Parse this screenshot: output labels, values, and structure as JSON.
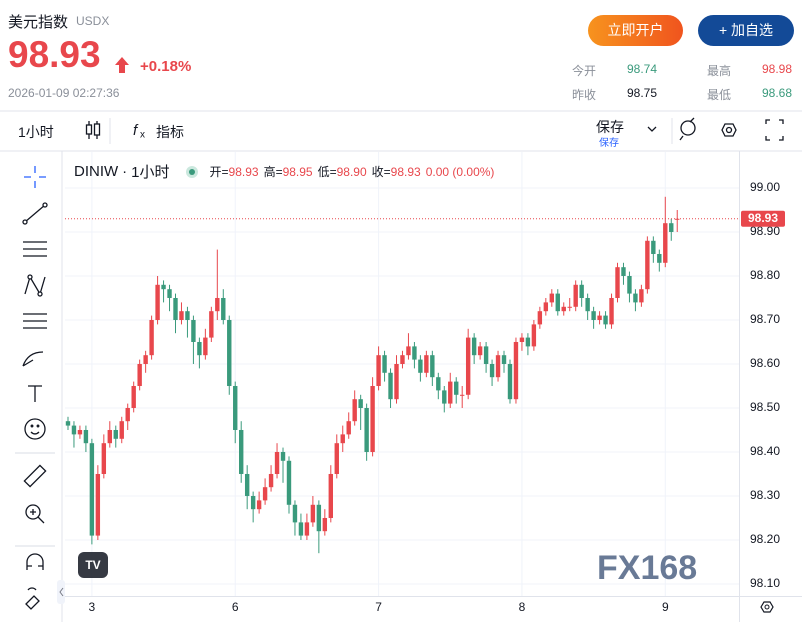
{
  "header": {
    "title": "美元指数",
    "code": "USDX",
    "price": "98.93",
    "change": "+0.18%",
    "time": "2026-01-09 02:27:36",
    "buttons": [
      "立即开户",
      "+ 加自选"
    ],
    "stats": [
      {
        "label": "今开",
        "value": "98.74"
      },
      {
        "label": "最高",
        "value": "98.98"
      },
      {
        "label": "昨收",
        "value": "98.75"
      },
      {
        "label": "最低",
        "value": "98.68"
      }
    ]
  },
  "toolbar": {
    "interval": "1小时",
    "indicators": "指标",
    "save": "保存",
    "save_sub": "保存"
  },
  "legend": {
    "symbol": "DINIW",
    "interval": "1小时",
    "items": [
      {
        "label": "开=",
        "value": "98.93"
      },
      {
        "label": "高=",
        "value": "98.95"
      },
      {
        "label": "低=",
        "value": "98.90"
      },
      {
        "label": "收=",
        "value": "98.93"
      }
    ],
    "change": "0.00 (0.00%)"
  },
  "watermark": "FX168",
  "chart_data": {
    "type": "candlestick",
    "up_color": "#e8474c",
    "down_color": "#3a9a7c",
    "categories": [
      null,
      null,
      null,
      null,
      "3",
      null,
      null,
      null,
      null,
      null,
      null,
      null,
      null,
      null,
      null,
      null,
      null,
      null,
      null,
      null,
      null,
      null,
      null,
      null,
      null,
      null,
      null,
      null,
      "6",
      null,
      null,
      null,
      null,
      null,
      null,
      null,
      null,
      null,
      null,
      null,
      null,
      null,
      null,
      null,
      null,
      null,
      null,
      null,
      null,
      null,
      null,
      null,
      "7",
      null,
      null,
      null,
      null,
      null,
      null,
      null,
      null,
      null,
      null,
      null,
      null,
      null,
      null,
      null,
      null,
      null,
      null,
      null,
      null,
      null,
      null,
      null,
      "8",
      null,
      null,
      null,
      null,
      null,
      null,
      null,
      null,
      null,
      null,
      null,
      null,
      null,
      null,
      null,
      null,
      null,
      null,
      null,
      null,
      null,
      null,
      null,
      "9",
      null,
      null
    ],
    "ohlc": [
      [
        98.47,
        98.48,
        98.45,
        98.46
      ],
      [
        98.46,
        98.47,
        98.41,
        98.44
      ],
      [
        98.44,
        98.46,
        98.43,
        98.45
      ],
      [
        98.45,
        98.46,
        98.4,
        98.42
      ],
      [
        98.42,
        98.43,
        98.19,
        98.21
      ],
      [
        98.21,
        98.37,
        98.2,
        98.35
      ],
      [
        98.35,
        98.44,
        98.34,
        98.42
      ],
      [
        98.42,
        98.47,
        98.41,
        98.45
      ],
      [
        98.45,
        98.46,
        98.41,
        98.43
      ],
      [
        98.43,
        98.48,
        98.42,
        98.47
      ],
      [
        98.47,
        98.51,
        98.45,
        98.5
      ],
      [
        98.5,
        98.56,
        98.49,
        98.55
      ],
      [
        98.55,
        98.61,
        98.54,
        98.6
      ],
      [
        98.6,
        98.63,
        98.58,
        98.62
      ],
      [
        98.62,
        98.71,
        98.61,
        98.7
      ],
      [
        98.7,
        98.8,
        98.69,
        98.78
      ],
      [
        98.78,
        98.79,
        98.74,
        98.77
      ],
      [
        98.77,
        98.78,
        98.72,
        98.75
      ],
      [
        98.75,
        98.76,
        98.67,
        98.7
      ],
      [
        98.7,
        98.74,
        98.69,
        98.72
      ],
      [
        98.72,
        98.73,
        98.66,
        98.7
      ],
      [
        98.7,
        98.71,
        98.6,
        98.65
      ],
      [
        98.65,
        98.66,
        98.59,
        98.62
      ],
      [
        98.62,
        98.68,
        98.61,
        98.66
      ],
      [
        98.66,
        98.73,
        98.65,
        98.72
      ],
      [
        98.72,
        98.86,
        98.7,
        98.75
      ],
      [
        98.75,
        98.77,
        98.69,
        98.7
      ],
      [
        98.7,
        98.71,
        98.53,
        98.55
      ],
      [
        98.55,
        98.56,
        98.42,
        98.45
      ],
      [
        98.45,
        98.47,
        98.33,
        98.35
      ],
      [
        98.35,
        98.37,
        98.27,
        98.3
      ],
      [
        98.3,
        98.31,
        98.24,
        98.27
      ],
      [
        98.27,
        98.31,
        98.26,
        98.29
      ],
      [
        98.29,
        98.34,
        98.28,
        98.32
      ],
      [
        98.32,
        98.37,
        98.31,
        98.35
      ],
      [
        98.35,
        98.42,
        98.34,
        98.4
      ],
      [
        98.4,
        98.41,
        98.33,
        98.38
      ],
      [
        98.38,
        98.39,
        98.26,
        98.28
      ],
      [
        98.28,
        98.29,
        98.21,
        98.24
      ],
      [
        98.24,
        98.26,
        98.2,
        98.21
      ],
      [
        98.21,
        98.26,
        98.2,
        98.24
      ],
      [
        98.24,
        98.3,
        98.23,
        98.28
      ],
      [
        98.28,
        98.29,
        98.17,
        98.22
      ],
      [
        98.22,
        98.27,
        98.21,
        98.25
      ],
      [
        98.25,
        98.37,
        98.24,
        98.35
      ],
      [
        98.35,
        98.44,
        98.34,
        98.42
      ],
      [
        98.42,
        98.46,
        98.4,
        98.44
      ],
      [
        98.44,
        98.49,
        98.43,
        98.47
      ],
      [
        98.47,
        98.54,
        98.46,
        98.52
      ],
      [
        98.52,
        98.53,
        98.45,
        98.5
      ],
      [
        98.5,
        98.51,
        98.38,
        98.4
      ],
      [
        98.4,
        98.57,
        98.39,
        98.55
      ],
      [
        98.55,
        98.64,
        98.54,
        98.62
      ],
      [
        98.62,
        98.63,
        98.56,
        98.58
      ],
      [
        98.58,
        98.59,
        98.5,
        98.52
      ],
      [
        98.52,
        98.62,
        98.51,
        98.6
      ],
      [
        98.6,
        98.63,
        98.59,
        98.62
      ],
      [
        98.62,
        98.67,
        98.61,
        98.64
      ],
      [
        98.64,
        98.65,
        98.59,
        98.61
      ],
      [
        98.61,
        98.62,
        98.56,
        98.58
      ],
      [
        98.58,
        98.63,
        98.57,
        98.62
      ],
      [
        98.62,
        98.63,
        98.55,
        98.57
      ],
      [
        98.57,
        98.58,
        98.52,
        98.54
      ],
      [
        98.54,
        98.55,
        98.49,
        98.51
      ],
      [
        98.51,
        98.58,
        98.5,
        98.56
      ],
      [
        98.56,
        98.57,
        98.51,
        98.53
      ],
      [
        98.53,
        98.55,
        98.5,
        98.53
      ],
      [
        98.53,
        98.68,
        98.52,
        98.66
      ],
      [
        98.66,
        98.67,
        98.6,
        98.62
      ],
      [
        98.62,
        98.65,
        98.61,
        98.64
      ],
      [
        98.64,
        98.65,
        98.58,
        98.6
      ],
      [
        98.6,
        98.61,
        98.55,
        98.57
      ],
      [
        98.57,
        98.63,
        98.56,
        98.62
      ],
      [
        98.62,
        98.63,
        98.58,
        98.6
      ],
      [
        98.6,
        98.61,
        98.51,
        98.52
      ],
      [
        98.52,
        98.66,
        98.51,
        98.65
      ],
      [
        98.65,
        98.67,
        98.63,
        98.66
      ],
      [
        98.66,
        98.67,
        98.62,
        98.64
      ],
      [
        98.64,
        98.7,
        98.63,
        98.69
      ],
      [
        98.69,
        98.73,
        98.68,
        98.72
      ],
      [
        98.72,
        98.75,
        98.71,
        98.74
      ],
      [
        98.74,
        98.77,
        98.73,
        98.76
      ],
      [
        98.76,
        98.77,
        98.71,
        98.72
      ],
      [
        98.72,
        98.74,
        98.71,
        98.73
      ],
      [
        98.73,
        98.75,
        98.72,
        98.73
      ],
      [
        98.73,
        98.79,
        98.72,
        98.78
      ],
      [
        98.78,
        98.79,
        98.73,
        98.75
      ],
      [
        98.75,
        98.76,
        98.7,
        98.72
      ],
      [
        98.72,
        98.73,
        98.68,
        98.7
      ],
      [
        98.7,
        98.72,
        98.69,
        98.71
      ],
      [
        98.71,
        98.72,
        98.68,
        98.69
      ],
      [
        98.69,
        98.76,
        98.68,
        98.75
      ],
      [
        98.75,
        98.83,
        98.74,
        98.82
      ],
      [
        98.82,
        98.83,
        98.78,
        98.8
      ],
      [
        98.8,
        98.81,
        98.74,
        98.76
      ],
      [
        98.76,
        98.77,
        98.72,
        98.74
      ],
      [
        98.74,
        98.78,
        98.73,
        98.77
      ],
      [
        98.77,
        98.89,
        98.76,
        98.88
      ],
      [
        98.88,
        98.89,
        98.83,
        98.85
      ],
      [
        98.85,
        98.86,
        98.81,
        98.83
      ],
      [
        98.83,
        98.98,
        98.82,
        98.92
      ],
      [
        98.92,
        98.93,
        98.88,
        98.9
      ],
      [
        98.93,
        98.95,
        98.9,
        98.93
      ]
    ],
    "ylim": [
      98.0727,
      99.0818
    ],
    "yticks": [
      {
        "value": 99.0,
        "label": "99.00"
      },
      {
        "value": 98.9,
        "label": "98.90"
      },
      {
        "value": 98.8,
        "label": "98.80"
      },
      {
        "value": 98.7,
        "label": "98.70"
      },
      {
        "value": 98.6,
        "label": "98.60"
      },
      {
        "value": 98.5,
        "label": "98.50"
      },
      {
        "value": 98.4,
        "label": "98.40"
      },
      {
        "value": 98.3,
        "label": "98.30"
      },
      {
        "value": 98.2,
        "label": "98.20"
      },
      {
        "value": 98.1,
        "label": "98.10"
      }
    ],
    "last_price": {
      "value": 98.93,
      "label": "98.93"
    },
    "grid": true
  }
}
